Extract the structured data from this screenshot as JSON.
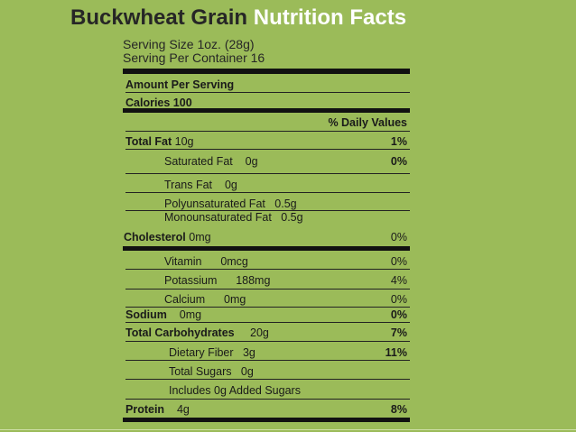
{
  "header": {
    "title_part1": "Buckwheat Grain",
    "title_part2": "Nutrition Facts",
    "serving_size": "Serving Size 1oz. (28g)",
    "servings_per_container": "Serving Per Container 16"
  },
  "label": {
    "amount_per_serving": "Amount Per Serving",
    "calories": "Calories 100",
    "daily_values_header": "% Daily Values",
    "rows": [
      {
        "name": "Total Fat",
        "amount": "10g",
        "dv": "1%"
      },
      {
        "name": "Saturated Fat",
        "amount": "0g",
        "dv": "0%"
      },
      {
        "name": "Trans Fat",
        "amount": "0g",
        "dv": ""
      },
      {
        "name": "Polyunsaturated Fat",
        "amount": "0.5g",
        "dv": ""
      },
      {
        "name": "Monounsaturated Fat",
        "amount": "0.5g",
        "dv": ""
      },
      {
        "name": "Cholesterol",
        "amount": "0mg",
        "dv": "0%"
      },
      {
        "name": "Vitamin",
        "amount": "0mcg",
        "dv": "0%"
      },
      {
        "name": "Potassium",
        "amount": "188mg",
        "dv": "4%"
      },
      {
        "name": "Calcium",
        "amount": "0mg",
        "dv": "0%"
      },
      {
        "name": "Sodium",
        "amount": "0mg",
        "dv": "0%"
      },
      {
        "name": "Total Carbohydrates",
        "amount": "20g",
        "dv": "7%"
      },
      {
        "name": "Dietary Fiber",
        "amount": "3g",
        "dv": "11%"
      },
      {
        "name": "Total Sugars",
        "amount": "0g",
        "dv": ""
      },
      {
        "name": "Includes 0g Added Sugars",
        "amount": "",
        "dv": ""
      },
      {
        "name": "Protein",
        "amount": "4g",
        "dv": "8%"
      }
    ]
  }
}
